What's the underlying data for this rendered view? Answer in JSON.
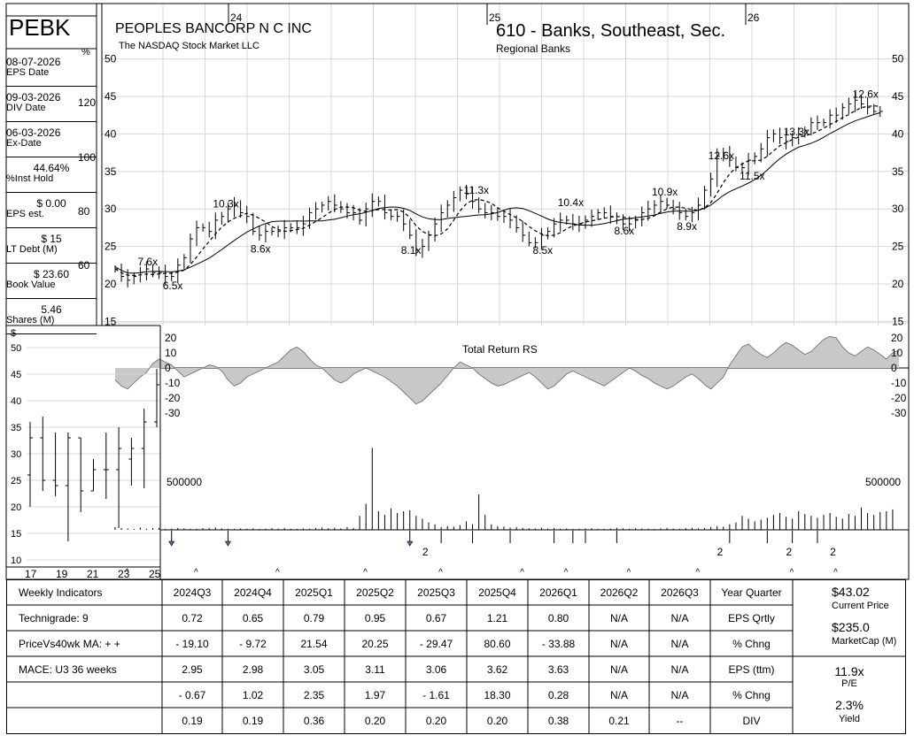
{
  "header": {
    "ticker": "PEBK",
    "company": "PEOPLES BANCORP N C INC",
    "exchange": "The NASDAQ Stock Market LLC",
    "industry": "610 - Banks, Southeast, Sec.",
    "sub_industry": "Regional Banks"
  },
  "stats": [
    {
      "value": "08-07-2026",
      "label": "EPS Date"
    },
    {
      "value": "09-03-2026",
      "label": "DIV Date"
    },
    {
      "value": "06-03-2026",
      "label": "Ex-Date"
    },
    {
      "value": "44.64%",
      "label": "%Inst Hold"
    },
    {
      "value": "$ 0.00",
      "label": "EPS est."
    },
    {
      "value": "$ 15",
      "label": "LT Debt (M)"
    },
    {
      "value": "$ 23.60",
      "label": "Book Value"
    },
    {
      "value": "5.46",
      "label": "Shares (M)"
    }
  ],
  "chart_data": [
    {
      "type": "ohlc",
      "name": "weekly-price",
      "x_labels": [
        "24",
        "25",
        "26"
      ],
      "price_ticks": [
        15,
        20,
        25,
        30,
        35,
        40,
        45,
        50
      ],
      "pct_ticks": [
        60,
        80,
        100,
        120
      ],
      "pct_unit": "%",
      "ylim": [
        15,
        50
      ],
      "pe_labels": [
        {
          "text": "7.6x",
          "week": 5,
          "price": 22.5
        },
        {
          "text": "6.5x",
          "week": 9,
          "price": 19.3
        },
        {
          "text": "10.3x",
          "week": 17,
          "price": 30.2
        },
        {
          "text": "8.6x",
          "week": 23,
          "price": 24.2
        },
        {
          "text": "11.3x",
          "week": 57,
          "price": 32.0
        },
        {
          "text": "8.1x",
          "week": 47,
          "price": 24.0
        },
        {
          "text": "10.4x",
          "week": 72,
          "price": 30.4
        },
        {
          "text": "8.5x",
          "week": 68,
          "price": 24.0
        },
        {
          "text": "10.9x",
          "week": 87,
          "price": 31.8
        },
        {
          "text": "8.6x",
          "week": 81,
          "price": 26.6
        },
        {
          "text": "8.9x",
          "week": 91,
          "price": 27.2
        },
        {
          "text": "12.6x",
          "week": 96,
          "price": 36.6
        },
        {
          "text": "11.5x",
          "week": 101,
          "price": 33.9
        },
        {
          "text": "13.3x",
          "week": 108,
          "price": 39.8
        },
        {
          "text": "12.6x",
          "week": 119,
          "price": 44.8
        }
      ],
      "closes": [
        22.0,
        21.0,
        20.5,
        21.0,
        21.5,
        22.0,
        21.5,
        21.5,
        21.0,
        21.0,
        22.5,
        23.5,
        26.0,
        27.5,
        27.5,
        27.0,
        28.5,
        29.0,
        30.0,
        30.5,
        29.5,
        29.0,
        27.0,
        26.5,
        27.0,
        27.0,
        27.0,
        27.5,
        27.5,
        27.5,
        28.0,
        29.5,
        30.0,
        30.5,
        31.0,
        30.5,
        30.0,
        29.5,
        29.5,
        28.5,
        30.0,
        31.0,
        31.0,
        29.5,
        29.0,
        29.0,
        28.0,
        26.5,
        24.5,
        25.0,
        26.5,
        28.0,
        29.5,
        30.5,
        31.5,
        32.5,
        32.0,
        31.0,
        30.0,
        29.5,
        29.5,
        29.0,
        29.0,
        28.5,
        27.5,
        26.5,
        25.5,
        25.5,
        26.5,
        27.0,
        28.0,
        28.5,
        28.5,
        28.0,
        28.0,
        28.5,
        29.0,
        29.5,
        29.5,
        29.0,
        28.5,
        28.0,
        28.0,
        28.5,
        29.5,
        30.0,
        30.5,
        31.0,
        30.5,
        30.0,
        29.5,
        29.0,
        29.5,
        30.5,
        32.5,
        34.0,
        37.0,
        37.5,
        36.5,
        35.5,
        35.5,
        36.5,
        37.0,
        38.0,
        39.5,
        40.0,
        39.5,
        39.0,
        39.5,
        40.0,
        40.5,
        41.5,
        41.5,
        41.5,
        42.5,
        42.5,
        43.5,
        44.0,
        44.5,
        44.0,
        43.5,
        43.0,
        43.0
      ],
      "ma_short": "dashed",
      "ma_long": "solid"
    },
    {
      "type": "area",
      "name": "relative-strength",
      "title": "Total Return RS",
      "ticks": [
        20,
        10,
        0,
        -10,
        -20,
        -30
      ],
      "ylim": [
        -30,
        20
      ],
      "values": [
        -8,
        -12,
        -14,
        -10,
        -6,
        -3,
        3,
        6,
        4,
        2,
        -2,
        -6,
        -4,
        -2,
        0,
        2,
        1,
        -2,
        -8,
        -12,
        -10,
        -6,
        -4,
        -2,
        0,
        2,
        4,
        8,
        12,
        14,
        11,
        6,
        2,
        0,
        -4,
        -8,
        -10,
        -8,
        -4,
        -2,
        0,
        -2,
        -4,
        -6,
        -9,
        -12,
        -16,
        -20,
        -24,
        -22,
        -18,
        -14,
        -10,
        -5,
        0,
        4,
        2,
        0,
        -4,
        -7,
        -10,
        -12,
        -11,
        -9,
        -7,
        -5,
        -3,
        -6,
        -10,
        -14,
        -12,
        -8,
        -4,
        -2,
        -4,
        -6,
        -8,
        -10,
        -12,
        -9,
        -6,
        -3,
        0,
        -2,
        -5,
        -7,
        -10,
        -12,
        -14,
        -12,
        -9,
        -6,
        -4,
        -7,
        -11,
        -14,
        -10,
        -6,
        2,
        8,
        14,
        16,
        12,
        9,
        7,
        10,
        14,
        17,
        15,
        12,
        9,
        11,
        15,
        19,
        21,
        20,
        14,
        10,
        8,
        11,
        14,
        12,
        9,
        6,
        10,
        12
      ],
      "fill": "#c8c8c8"
    },
    {
      "type": "bar",
      "name": "weekly-volume",
      "label_left": "500000",
      "label_right": "500000",
      "ref_value": 500000,
      "ymax": 950000,
      "values": [
        30000,
        20000,
        15000,
        10000,
        25000,
        12000,
        18000,
        22000,
        10000,
        14000,
        20000,
        16000,
        12000,
        10000,
        18000,
        20000,
        25000,
        15000,
        12000,
        10000,
        14000,
        12000,
        16000,
        10000,
        12000,
        18000,
        14000,
        20000,
        12000,
        10000,
        15000,
        12000,
        20000,
        25000,
        18000,
        22000,
        16000,
        30000,
        20000,
        150000,
        280000,
        880000,
        200000,
        160000,
        230000,
        180000,
        200000,
        210000,
        150000,
        120000,
        80000,
        60000,
        30000,
        40000,
        35000,
        50000,
        90000,
        60000,
        380000,
        160000,
        60000,
        40000,
        35000,
        25000,
        30000,
        20000,
        18000,
        15000,
        22000,
        14000,
        18000,
        12000,
        15000,
        10000,
        12000,
        14000,
        18000,
        12000,
        10000,
        14000,
        22000,
        16000,
        12000,
        18000,
        14000,
        12000,
        10000,
        16000,
        20000,
        14000,
        12000,
        18000,
        22000,
        16000,
        20000,
        30000,
        40000,
        35000,
        60000,
        80000,
        150000,
        120000,
        90000,
        110000,
        130000,
        160000,
        180000,
        140000,
        120000,
        200000,
        170000,
        150000,
        130000,
        160000,
        180000,
        140000,
        120000,
        170000,
        150000,
        240000,
        180000,
        160000,
        190000,
        200000,
        220000
      ]
    },
    {
      "type": "ohlc",
      "name": "yearly-price",
      "y_unit": "$",
      "ticks": [
        10,
        15,
        20,
        25,
        30,
        35,
        40,
        45,
        50
      ],
      "x_labels": [
        "17",
        "19",
        "21",
        "23",
        "25"
      ],
      "ylim": [
        9,
        53
      ],
      "bars": [
        {
          "year": 2016,
          "high": 36,
          "low": 20,
          "open": 26,
          "close": 33
        },
        {
          "year": 2017,
          "high": 37,
          "low": 23,
          "open": 33,
          "close": 25
        },
        {
          "year": 2018,
          "high": 34,
          "low": 22,
          "open": 25,
          "close": 24
        },
        {
          "year": 2019,
          "high": 34,
          "low": 13.5,
          "open": 24,
          "close": 33
        },
        {
          "year": 2020,
          "high": 33,
          "low": 19,
          "open": 33,
          "close": 23
        },
        {
          "year": 2021,
          "high": 29,
          "low": 23,
          "open": 23,
          "close": 27
        },
        {
          "year": 2022,
          "high": 34,
          "low": 21.5,
          "open": 27,
          "close": 27
        },
        {
          "year": 2023,
          "high": 35,
          "low": 16,
          "open": 27,
          "close": 31
        },
        {
          "year": 2024,
          "high": 33,
          "low": 24,
          "open": 29,
          "close": 31
        },
        {
          "year": 2025,
          "high": 38.5,
          "low": 23.5,
          "open": 31,
          "close": 36
        },
        {
          "year": 2026,
          "high": 46,
          "low": 35,
          "open": 36,
          "close": 43
        }
      ]
    }
  ],
  "events": {
    "dividend_arrows": [
      9,
      18,
      47
    ],
    "split_labels": [
      {
        "text": "2",
        "week": 49
      },
      {
        "text": "2",
        "week": 96
      },
      {
        "text": "2",
        "week": 107
      },
      {
        "text": "2",
        "week": 114
      }
    ],
    "earnings_marks": [
      1,
      12,
      25,
      39,
      51,
      64,
      71,
      81,
      92,
      107,
      114
    ]
  },
  "table": {
    "col_headers": [
      "Weekly Indicators",
      "2024Q3",
      "2024Q4",
      "2025Q1",
      "2025Q2",
      "2025Q3",
      "2025Q4",
      "2026Q1",
      "2026Q2",
      "2026Q3",
      "Year Quarter"
    ],
    "indicators": [
      "Technigrade: 9",
      "PriceVs40wk MA:  + +",
      "MACE: U3  36 weeks",
      "",
      ""
    ],
    "rows": [
      {
        "label": "EPS Qrtly",
        "values": [
          "0.72",
          "0.65",
          "0.79",
          "0.95",
          "0.67",
          "1.21",
          "0.80",
          "N/A",
          "N/A"
        ]
      },
      {
        "label": "% Chng",
        "values": [
          "- 19.10",
          "- 9.72",
          "21.54",
          "20.25",
          "- 29.47",
          "80.60",
          "- 33.88",
          "N/A",
          "N/A"
        ]
      },
      {
        "label": "EPS (ttm)",
        "values": [
          "2.95",
          "2.98",
          "3.05",
          "3.11",
          "3.06",
          "3.62",
          "3.63",
          "N/A",
          "N/A"
        ]
      },
      {
        "label": "% Chng",
        "values": [
          "- 0.67",
          "1.02",
          "2.35",
          "1.97",
          "- 1.61",
          "18.30",
          "0.28",
          "N/A",
          "N/A"
        ]
      },
      {
        "label": "DIV",
        "values": [
          "0.19",
          "0.19",
          "0.36",
          "0.20",
          "0.20",
          "0.20",
          "0.38",
          "0.21",
          "--"
        ]
      }
    ],
    "summary": {
      "price": "$43.02",
      "price_label": "Current Price",
      "mcap": "$235.0",
      "mcap_label": "MarketCap (M)",
      "pe": "11.9x",
      "pe_label": "P/E",
      "yield": "2.3%",
      "yield_label": "Yield"
    }
  }
}
